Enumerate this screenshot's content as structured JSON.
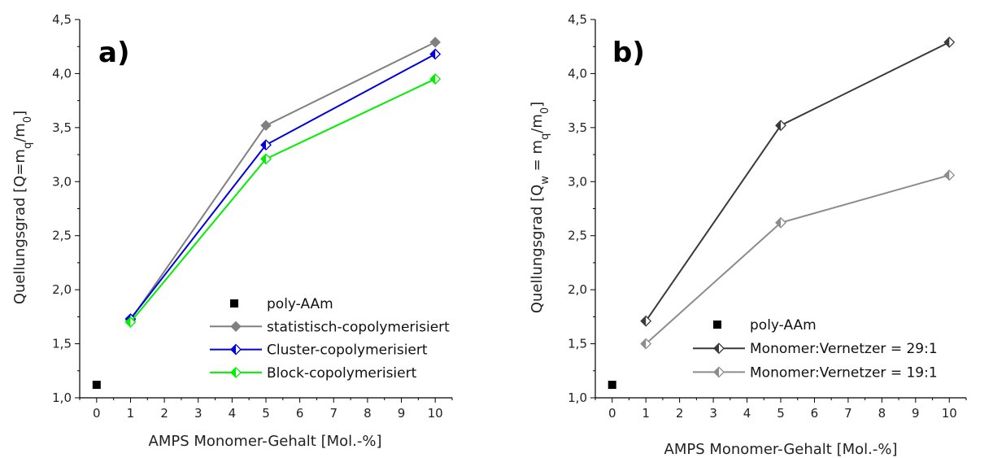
{
  "chart_data": [
    {
      "panel": "a)",
      "type": "line",
      "xlabel": "AMPS Monomer-Gehalt [Mol.-%]",
      "ylabel_main": "Quellungsgrad [Q=m",
      "ylabel_sub1": "q",
      "ylabel_mid": "/m",
      "ylabel_sub2": "0",
      "ylabel_end": "]",
      "xlim": [
        -0.5,
        10.5
      ],
      "ylim": [
        1.0,
        4.5
      ],
      "x_ticks": [
        0,
        1,
        2,
        3,
        4,
        5,
        6,
        7,
        8,
        9,
        10
      ],
      "x_tick_labels": [
        "0",
        "1",
        "2",
        "3",
        "4",
        "5",
        "6",
        "7",
        "8",
        "9",
        "10"
      ],
      "y_ticks": [
        1.0,
        1.5,
        2.0,
        2.5,
        3.0,
        3.5,
        4.0,
        4.5
      ],
      "y_tick_labels": [
        "1,0",
        "1,5",
        "2,0",
        "2,5",
        "3,0",
        "3,5",
        "4,0",
        "4,5"
      ],
      "legend_position": "bottom-right",
      "series": [
        {
          "name": "poly-AAm",
          "marker": "square",
          "line": false,
          "color": "#000000",
          "x": [
            0
          ],
          "y": [
            1.12
          ]
        },
        {
          "name": "statistisch-copolymerisiert",
          "marker": "diamond-filled",
          "line": true,
          "color": "#808080",
          "x": [
            1,
            5,
            10
          ],
          "y": [
            1.72,
            3.52,
            4.29
          ]
        },
        {
          "name": "Cluster-copolymerisiert",
          "marker": "diamond-half",
          "line": true,
          "color": "#0000dd",
          "x": [
            1,
            5,
            10
          ],
          "y": [
            1.73,
            3.34,
            4.18
          ]
        },
        {
          "name": "Block-copolymerisiert",
          "marker": "diamond-half",
          "line": true,
          "color": "#00ee00",
          "x": [
            1,
            5,
            10
          ],
          "y": [
            1.7,
            3.21,
            3.95
          ]
        }
      ]
    },
    {
      "panel": "b)",
      "type": "line",
      "xlabel": "AMPS Monomer-Gehalt [Mol.-%]",
      "ylabel_main": "Quellungsgrad [Q",
      "ylabel_sub1": "w",
      "ylabel_mid": " = m",
      "ylabel_sub2": "q",
      "ylabel_mid2": "/m",
      "ylabel_sub3": "0",
      "ylabel_end": "]",
      "xlim": [
        -0.5,
        10.5
      ],
      "ylim": [
        1.0,
        4.5
      ],
      "x_ticks": [
        0,
        1,
        2,
        3,
        4,
        5,
        6,
        7,
        8,
        9,
        10
      ],
      "x_tick_labels": [
        "0",
        "1",
        "2",
        "3",
        "4",
        "5",
        "6",
        "7",
        "8",
        "9",
        "10"
      ],
      "y_ticks": [
        1.0,
        1.5,
        2.0,
        2.5,
        3.0,
        3.5,
        4.0,
        4.5
      ],
      "y_tick_labels": [
        "1,0",
        "1,5",
        "2,0",
        "2,5",
        "3,0",
        "3,5",
        "4,0",
        "4,5"
      ],
      "legend_position": "bottom-right",
      "series": [
        {
          "name": "poly-AAm",
          "marker": "square",
          "line": false,
          "color": "#000000",
          "x": [
            0
          ],
          "y": [
            1.12
          ]
        },
        {
          "name": "Monomer:Vernetzer = 29:1",
          "marker": "diamond-half",
          "line": true,
          "color": "#3a3a3a",
          "x": [
            1,
            5,
            10
          ],
          "y": [
            1.71,
            3.52,
            4.29
          ]
        },
        {
          "name": "Monomer:Vernetzer = 19:1",
          "marker": "diamond-half",
          "line": true,
          "color": "#8c8c8c",
          "x": [
            1,
            5,
            10
          ],
          "y": [
            1.5,
            2.62,
            3.06
          ]
        }
      ]
    }
  ]
}
